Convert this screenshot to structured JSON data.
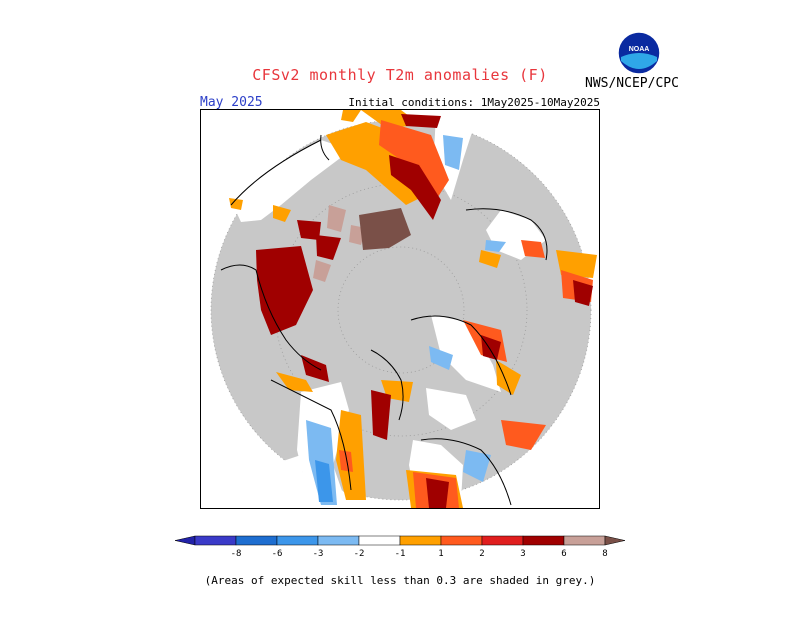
{
  "header": {
    "title": "CFSv2 monthly T2m anomalies (F)",
    "month": "May 2025",
    "initial_conditions": "Initial conditions: 1May2025-10May2025",
    "agency": "NWS/NCEP/CPC",
    "logo_text": "NOAA"
  },
  "legend": {
    "tick_labels": [
      "-8",
      "-6",
      "-3",
      "-2",
      "-1",
      "1",
      "2",
      "3",
      "6",
      "8"
    ],
    "colors": [
      "#2222a8",
      "#3a3ac8",
      "#1e6ed0",
      "#3c96ea",
      "#7cbaf2",
      "#ffffff",
      "#ffa000",
      "#ff5a1e",
      "#e01e1e",
      "#a00000",
      "#c8a098",
      "#7a5048"
    ]
  },
  "footnote": "(Areas of expected skill less than 0.3 are shaded in grey.)",
  "map": {
    "projection": "north-polar-stereographic",
    "skill_mask_color": "#c8c8c8"
  }
}
